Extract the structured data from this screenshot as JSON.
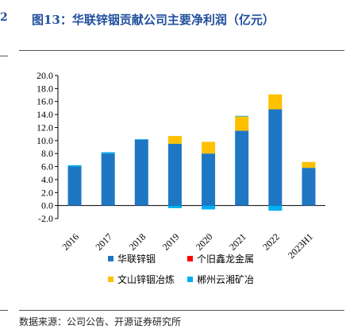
{
  "header": {
    "title": "图13：华联锌铟贡献公司主要净利润（亿元）",
    "source": "数据来源：公司公告、开源证券研究所"
  },
  "chart_data": {
    "type": "bar",
    "stacked": true,
    "categories": [
      "2016",
      "2017",
      "2018",
      "2019",
      "2020",
      "2021",
      "2022",
      "2023H1"
    ],
    "series": [
      {
        "name": "华联锌铟",
        "color": "#1f77c4",
        "values": [
          6.0,
          8.0,
          10.1,
          9.5,
          8.0,
          11.5,
          14.8,
          5.8
        ]
      },
      {
        "name": "个旧鑫龙金属",
        "color": "#ff0000",
        "values": [
          0.0,
          0.0,
          0.0,
          0.0,
          0.0,
          0.0,
          0.0,
          0.0
        ]
      },
      {
        "name": "文山锌铟冶炼",
        "color": "#ffc000",
        "values": [
          0.0,
          0.0,
          0.0,
          1.2,
          1.8,
          2.2,
          2.3,
          0.9
        ]
      },
      {
        "name": "郴州云湘矿冶",
        "color": "#00b0f0",
        "values": [
          0.2,
          0.2,
          0.1,
          -0.4,
          -0.6,
          0.1,
          -0.8,
          0.0
        ]
      }
    ],
    "yticks": [
      "20.0",
      "18.0",
      "16.0",
      "14.0",
      "12.0",
      "10.0",
      "8.0",
      "6.0",
      "4.0",
      "2.0",
      "0.0",
      "-2.0"
    ],
    "ylim": [
      -2,
      20
    ],
    "title": "",
    "xlabel": "",
    "ylabel": "",
    "legend_position": "bottom"
  }
}
